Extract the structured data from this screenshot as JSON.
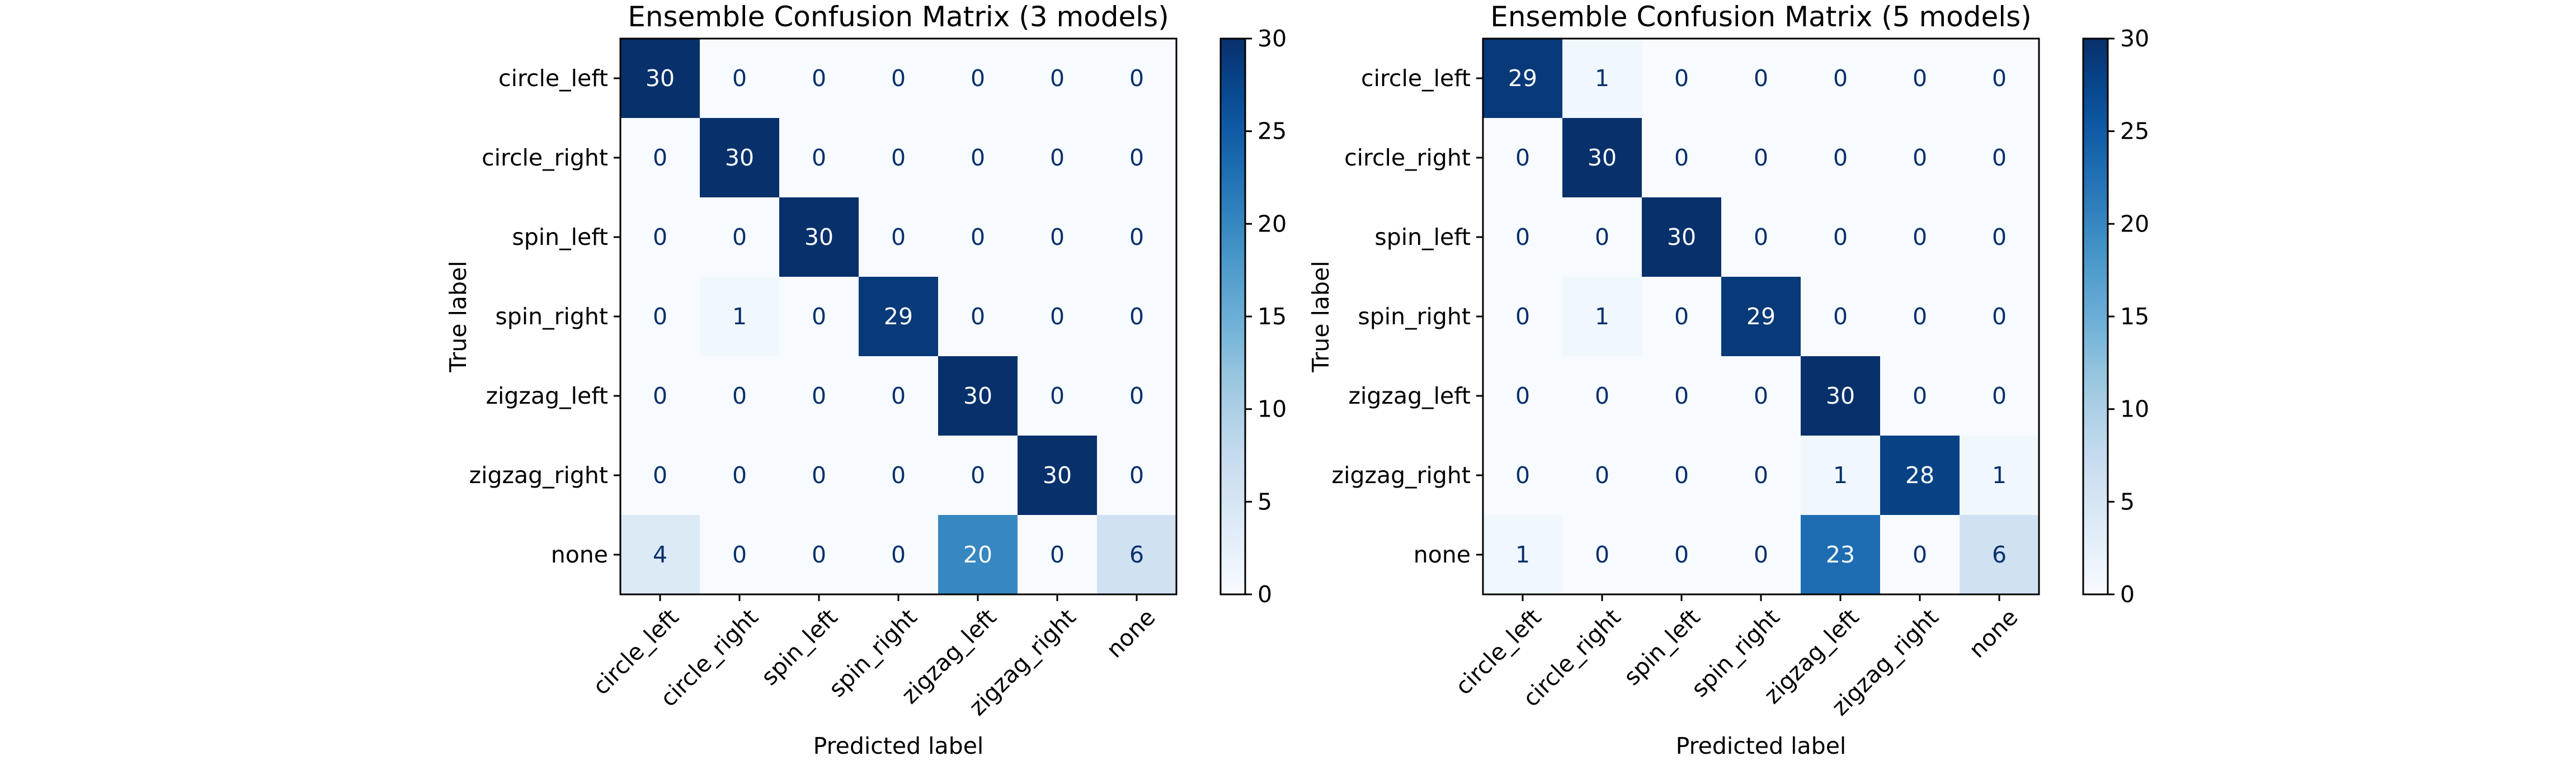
{
  "chart_data": [
    {
      "type": "heatmap",
      "title": "Ensemble Confusion Matrix (3 models)",
      "xlabel": "Predicted label",
      "ylabel": "True label",
      "x_categories": [
        "circle_left",
        "circle_right",
        "spin_left",
        "spin_right",
        "zigzag_left",
        "zigzag_right",
        "none"
      ],
      "y_categories": [
        "circle_left",
        "circle_right",
        "spin_left",
        "spin_right",
        "zigzag_left",
        "zigzag_right",
        "none"
      ],
      "values": [
        [
          30,
          0,
          0,
          0,
          0,
          0,
          0
        ],
        [
          0,
          30,
          0,
          0,
          0,
          0,
          0
        ],
        [
          0,
          0,
          30,
          0,
          0,
          0,
          0
        ],
        [
          0,
          1,
          0,
          29,
          0,
          0,
          0
        ],
        [
          0,
          0,
          0,
          0,
          30,
          0,
          0
        ],
        [
          0,
          0,
          0,
          0,
          0,
          30,
          0
        ],
        [
          4,
          0,
          0,
          0,
          20,
          0,
          6
        ]
      ],
      "colormap": "Blues",
      "colorbar": {
        "min": 0,
        "max": 30,
        "ticks": [
          "0",
          "5",
          "10",
          "15",
          "20",
          "25",
          "30"
        ]
      }
    },
    {
      "type": "heatmap",
      "title": "Ensemble Confusion Matrix (5 models)",
      "xlabel": "Predicted label",
      "ylabel": "True label",
      "x_categories": [
        "circle_left",
        "circle_right",
        "spin_left",
        "spin_right",
        "zigzag_left",
        "zigzag_right",
        "none"
      ],
      "y_categories": [
        "circle_left",
        "circle_right",
        "spin_left",
        "spin_right",
        "zigzag_left",
        "zigzag_right",
        "none"
      ],
      "values": [
        [
          29,
          1,
          0,
          0,
          0,
          0,
          0
        ],
        [
          0,
          30,
          0,
          0,
          0,
          0,
          0
        ],
        [
          0,
          0,
          30,
          0,
          0,
          0,
          0
        ],
        [
          0,
          1,
          0,
          29,
          0,
          0,
          0
        ],
        [
          0,
          0,
          0,
          0,
          30,
          0,
          0
        ],
        [
          0,
          0,
          0,
          0,
          1,
          28,
          1
        ],
        [
          1,
          0,
          0,
          0,
          23,
          0,
          6
        ]
      ],
      "colormap": "Blues",
      "colorbar": {
        "min": 0,
        "max": 30,
        "ticks": [
          "0",
          "5",
          "10",
          "15",
          "20",
          "25",
          "30"
        ]
      }
    }
  ]
}
